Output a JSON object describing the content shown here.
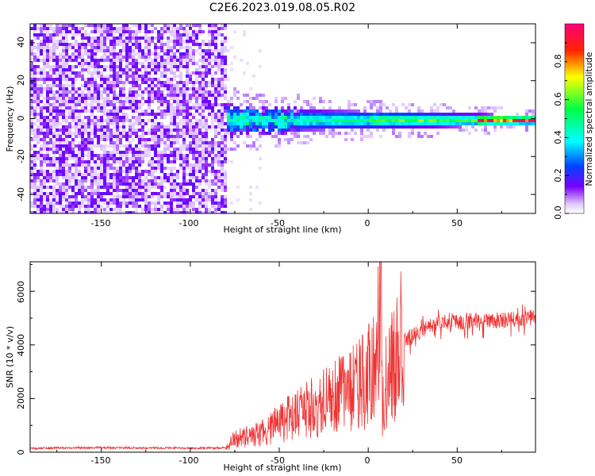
{
  "title": "C2E6.2023.019.08.05.R02",
  "chart_data": [
    {
      "type": "heatmap",
      "xlabel": "Height of straight line (km)",
      "ylabel": "Frequency (Hz)",
      "xlim": [
        -190,
        94
      ],
      "ylim": [
        -50,
        50
      ],
      "xticks": [
        -150,
        -100,
        -50,
        0,
        50
      ],
      "xtick_labels": [
        "-150",
        "-100",
        "-50",
        "0",
        "50"
      ],
      "yticks": [
        -40,
        -20,
        0,
        20,
        40
      ],
      "ytick_labels": [
        "-40",
        "-20",
        "0",
        "20",
        "40"
      ],
      "noise_region_x": [
        -190,
        -80
      ],
      "signal_band_center_hz": 0,
      "signal_band_description": "Strong narrow band near 0 Hz from about -80 km to 94 km, broadening to about +/-8 Hz near -70 km and narrowing to about +/-3 Hz near 90 km",
      "colorbar": {
        "label": "Normalized spectral amplitude",
        "range": [
          0.0,
          1.0
        ],
        "ticks": [
          0.0,
          0.2,
          0.4,
          0.6,
          0.8
        ],
        "tick_labels": [
          "0.0",
          "0.2",
          "0.4",
          "0.6",
          "0.8"
        ]
      }
    },
    {
      "type": "line",
      "xlabel": "Height of straight line (km)",
      "ylabel": "SNR (10 * v/v)",
      "xlim": [
        -190,
        94
      ],
      "ylim": [
        0,
        7100
      ],
      "xticks": [
        -150,
        -100,
        -50,
        0,
        50
      ],
      "xtick_labels": [
        "-150",
        "-100",
        "-50",
        "0",
        "50"
      ],
      "yticks": [
        0,
        2000,
        4000,
        6000
      ],
      "ytick_labels": [
        "0",
        "2000",
        "4000",
        "6000"
      ],
      "series": [
        {
          "name": "SNR",
          "color": "#ee3333",
          "x": [
            -190,
            -150,
            -100,
            -80,
            -75,
            -60,
            -50,
            -40,
            -30,
            -20,
            -10,
            0,
            5,
            7,
            8,
            10,
            15,
            20,
            30,
            40,
            60,
            80,
            94
          ],
          "values": [
            150,
            170,
            150,
            160,
            500,
            700,
            1100,
            1400,
            1700,
            2000,
            2400,
            2800,
            3100,
            7000,
            1500,
            2800,
            3500,
            4200,
            4600,
            4900,
            4950,
            5000,
            5100
          ]
        }
      ]
    }
  ]
}
